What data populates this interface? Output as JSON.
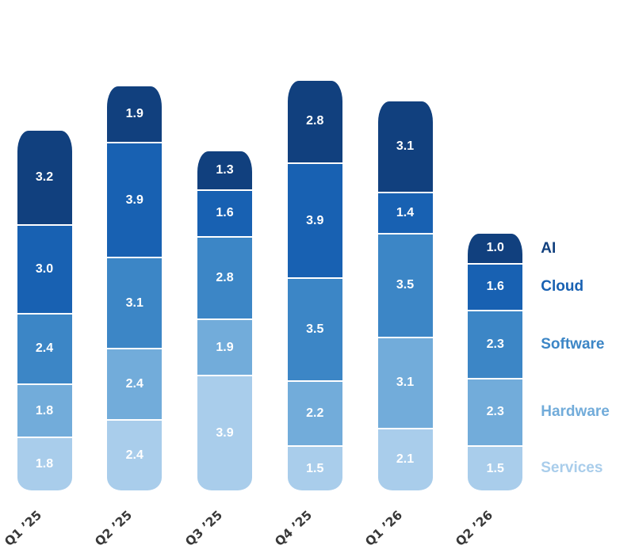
{
  "chart_data": {
    "type": "bar",
    "stacked": true,
    "categories": [
      "Q1 ’25",
      "Q2 ’25",
      "Q3 ’25",
      "Q4 ’25",
      "Q1 ’26",
      "Q2 ’26"
    ],
    "series": [
      {
        "name": "Services",
        "color": "#a9cdeb",
        "values": [
          1.8,
          2.4,
          3.9,
          1.5,
          2.1,
          1.5
        ]
      },
      {
        "name": "Hardware",
        "color": "#72acda",
        "values": [
          1.8,
          2.4,
          1.9,
          2.2,
          3.1,
          2.3
        ]
      },
      {
        "name": "Software",
        "color": "#3c86c6",
        "values": [
          2.4,
          3.1,
          2.8,
          3.5,
          3.5,
          2.3
        ]
      },
      {
        "name": "Cloud",
        "color": "#1861b2",
        "values": [
          3.0,
          3.9,
          1.6,
          3.9,
          1.4,
          1.6
        ]
      },
      {
        "name": "AI",
        "color": "#11407e",
        "values": [
          3.2,
          1.9,
          1.3,
          2.8,
          3.1,
          1.0
        ]
      }
    ],
    "value_labels_shown": true,
    "value_label_decimals": 1,
    "legend_position": "right-of-last-bar",
    "title": "",
    "xlabel": "",
    "ylabel": "",
    "axis_tick_label_color": "#383838",
    "background_color": "#ffffff"
  }
}
